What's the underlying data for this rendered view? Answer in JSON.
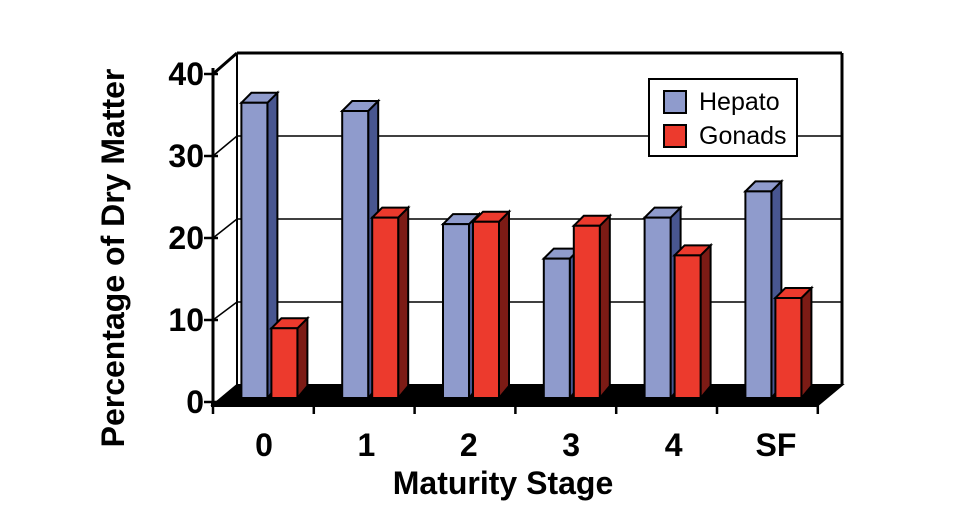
{
  "chart_data": {
    "type": "bar",
    "subtype": "3d-clustered-column",
    "title": "",
    "xlabel": "Maturity Stage",
    "ylabel": "Percentage of Dry Matter",
    "categories": [
      "0",
      "1",
      "2",
      "3",
      "4",
      "SF"
    ],
    "series": [
      {
        "name": "Hepato",
        "color": "#8F9BCC",
        "top_color": "#8F9BCC",
        "side_color": "#485690",
        "values": [
          36,
          35,
          21.2,
          17,
          22,
          25.2
        ]
      },
      {
        "name": "Gonads",
        "color": "#EC3A2D",
        "top_color": "#EC3A2D",
        "side_color": "#7C1B15",
        "values": [
          8.5,
          22,
          21.5,
          21,
          17.4,
          12.2
        ]
      }
    ],
    "yticks": [
      0,
      10,
      20,
      30,
      40
    ],
    "ylim": [
      0,
      40
    ],
    "grid": "horizontal",
    "legend_position": "top-right",
    "background": "#FFFFFF",
    "line_color": "#000000"
  }
}
